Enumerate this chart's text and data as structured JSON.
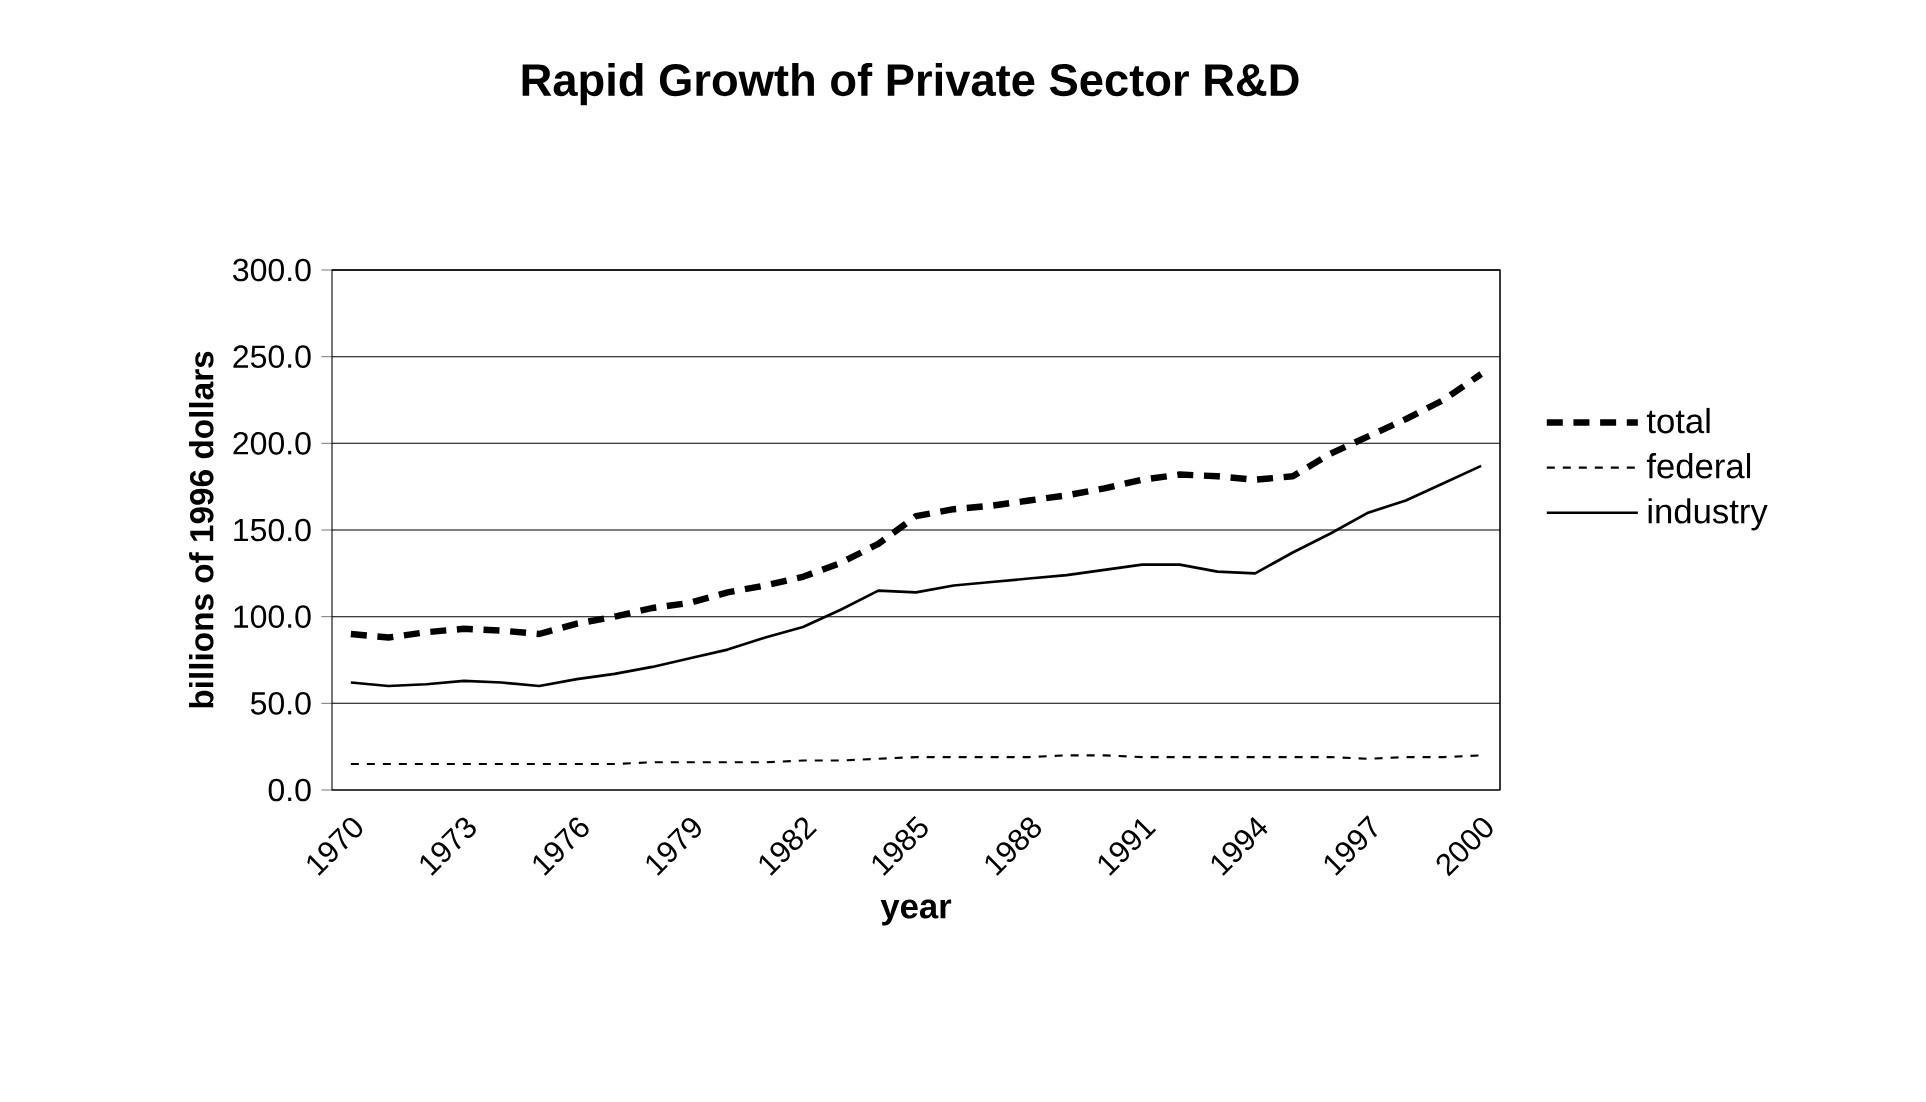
{
  "chart_data": {
    "type": "line",
    "title": "Rapid Growth of Private Sector R&D",
    "xlabel": "year",
    "ylabel": "billions of 1996 dollars",
    "categories": [
      "1970",
      null,
      null,
      "1973",
      null,
      null,
      "1976",
      null,
      null,
      "1979",
      null,
      null,
      "1982",
      null,
      null,
      "1985",
      null,
      null,
      "1988",
      null,
      null,
      "1991",
      null,
      null,
      "1994",
      null,
      null,
      "1997",
      null,
      null,
      "2000"
    ],
    "series": [
      {
        "name": "total",
        "color": "#000000",
        "line_style": "dashed",
        "values": [
          90,
          88,
          91,
          93,
          92,
          90,
          96,
          100,
          105,
          108,
          114,
          118,
          123,
          131,
          142,
          158,
          162,
          164,
          167,
          170,
          174,
          179,
          182,
          181,
          179,
          181,
          194,
          204,
          214,
          225,
          240
        ]
      },
      {
        "name": "federal",
        "color": "#000000",
        "line_style": "dotted",
        "values": [
          15,
          15,
          15,
          15,
          15,
          15,
          15,
          15,
          16,
          16,
          16,
          16,
          17,
          17,
          18,
          19,
          19,
          19,
          19,
          20,
          20,
          19,
          19,
          19,
          19,
          19,
          19,
          18,
          19,
          19,
          20
        ]
      },
      {
        "name": "industry",
        "color": "#000000",
        "line_style": "solid",
        "values": [
          62,
          60,
          61,
          63,
          62,
          60,
          64,
          67,
          71,
          76,
          81,
          88,
          94,
          104,
          115,
          114,
          118,
          120,
          122,
          124,
          127,
          130,
          130,
          126,
          125,
          137,
          148,
          160,
          167,
          177,
          187
        ]
      }
    ],
    "ylim": [
      0,
      300
    ],
    "yticks": [
      {
        "value": 0,
        "label": "0.0"
      },
      {
        "value": 50,
        "label": "50.0"
      },
      {
        "value": 100,
        "label": "100.0"
      },
      {
        "value": 150,
        "label": "150.0"
      },
      {
        "value": 200,
        "label": "200.0"
      },
      {
        "value": 250,
        "label": "250.0"
      },
      {
        "value": 300,
        "label": "300.0"
      }
    ],
    "grid": "y",
    "legend": "right",
    "marker": "none"
  }
}
